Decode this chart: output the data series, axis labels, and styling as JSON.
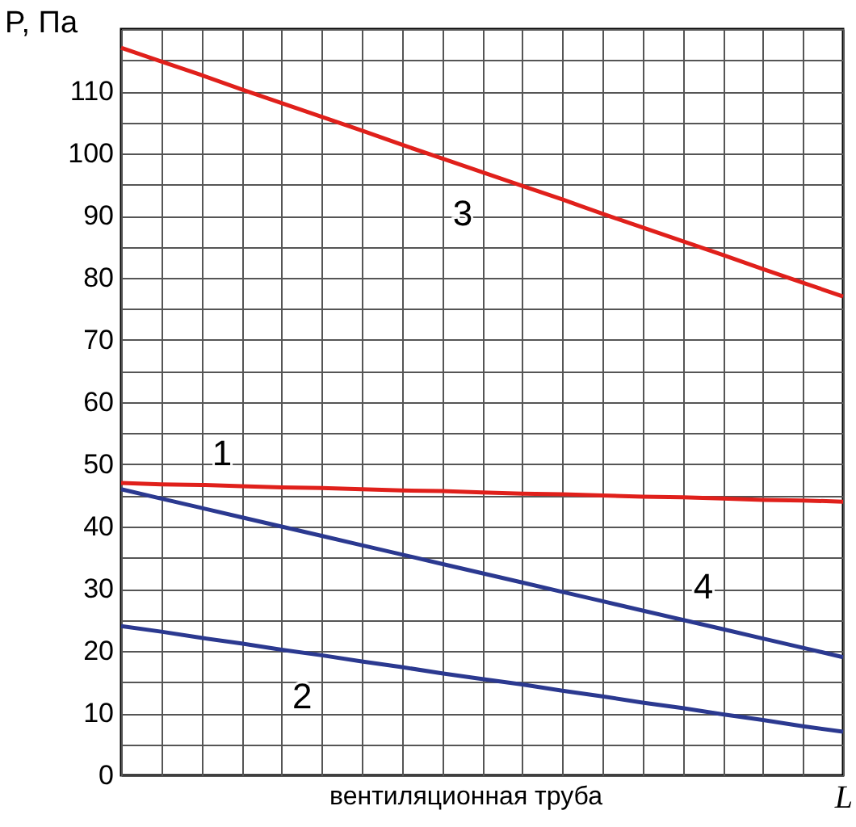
{
  "chart_data": {
    "type": "line",
    "ylabel": "P, Па",
    "xlabel": "L",
    "annotations": [
      "вентиляционная труба"
    ],
    "categories": [
      null,
      null,
      null,
      null,
      null,
      null,
      null,
      null,
      null,
      null,
      null,
      null,
      null,
      null,
      null,
      null,
      null,
      null,
      null
    ],
    "ylim": [
      0,
      120
    ],
    "yticks": [
      0,
      {
        "value": 5,
        "label": null
      },
      10,
      {
        "value": 15,
        "label": null
      },
      20,
      {
        "value": 25,
        "label": null
      },
      30,
      {
        "value": 35,
        "label": null
      },
      40,
      {
        "value": 45,
        "label": null
      },
      50,
      {
        "value": 55,
        "label": null
      },
      60,
      {
        "value": 65,
        "label": null
      },
      70,
      {
        "value": 75,
        "label": null
      },
      80,
      {
        "value": 85,
        "label": null
      },
      90,
      {
        "value": 95,
        "label": null
      },
      100,
      {
        "value": 105,
        "label": null
      },
      110,
      {
        "value": 115,
        "label": null
      },
      {
        "value": 120,
        "label": null
      }
    ],
    "tick_labels": "y",
    "grid": true,
    "marker": "none",
    "line_style": "solid",
    "series": [
      {
        "name": "1",
        "color": "#e0201b",
        "values": [
          47,
          46.8,
          46.7,
          46.5,
          46.3,
          46.2,
          46,
          45.8,
          45.7,
          45.5,
          45.3,
          45.2,
          45,
          44.8,
          44.7,
          44.5,
          44.3,
          44.2,
          44
        ]
      },
      {
        "name": "2",
        "color": "#2b3990",
        "values": [
          24,
          23.1,
          22.1,
          21.2,
          20.2,
          19.3,
          18.3,
          17.4,
          16.4,
          15.5,
          14.6,
          13.6,
          12.7,
          11.7,
          10.8,
          9.8,
          8.9,
          7.9,
          7
        ]
      },
      {
        "name": "3",
        "color": "#e0201b",
        "values": [
          117,
          114.8,
          112.6,
          110.3,
          108.1,
          105.9,
          103.7,
          101.4,
          99.2,
          97,
          94.8,
          92.6,
          90.3,
          88.1,
          85.9,
          83.7,
          81.4,
          79.2,
          77
        ]
      },
      {
        "name": "4",
        "color": "#2b3990",
        "values": [
          46,
          44.5,
          43,
          41.5,
          40,
          38.5,
          37,
          35.5,
          34,
          32.5,
          31,
          29.5,
          28,
          26.5,
          25,
          23.5,
          22,
          20.5,
          19
        ]
      }
    ]
  }
}
